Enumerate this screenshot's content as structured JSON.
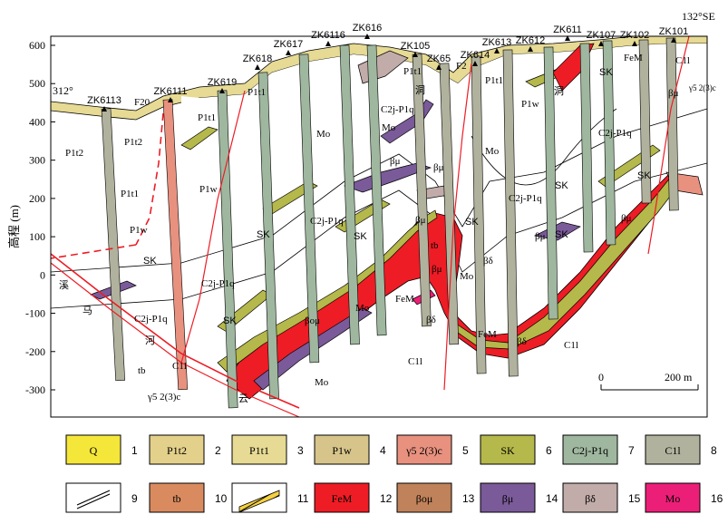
{
  "orientation": {
    "left": "312°",
    "right": "132°SE"
  },
  "axis": {
    "ylabel": "高程 (m)",
    "ticks": [
      {
        "label": "600",
        "v": 600
      },
      {
        "label": "500",
        "v": 500
      },
      {
        "label": "400",
        "v": 400
      },
      {
        "label": "300",
        "v": 300
      },
      {
        "label": "200",
        "v": 200
      },
      {
        "label": "100",
        "v": 100
      },
      {
        "label": "0",
        "v": 0
      },
      {
        "label": "-100",
        "v": -100
      },
      {
        "label": "-200",
        "v": -200
      },
      {
        "label": "-300",
        "v": -300
      }
    ]
  },
  "scale": {
    "start": "0",
    "end": "200 m"
  },
  "boreholes": [
    "ZK6113",
    "ZK6111",
    "ZK619",
    "ZK618",
    "ZK617",
    "ZK6116",
    "ZK616",
    "ZK105",
    "ZK65",
    "ZK614",
    "ZK613",
    "ZK612",
    "ZK611",
    "ZK107",
    "ZK102",
    "ZK101"
  ],
  "faults": {
    "f20": "F20",
    "f2": "F2"
  },
  "section_labels": {
    "p1t2_a": "P1t2",
    "p1t2_b": "P1t2",
    "p1t1_a": "P1t1",
    "p1t1_b": "P1t1",
    "p1t1_c": "P1t1",
    "p1t1_d": "P1t1",
    "p1t1_e": "P1t1",
    "p1w_a": "P1w",
    "p1w_b": "P1w",
    "p1w_c": "P1w",
    "cjp_a": "C2j-P1q",
    "cjp_b": "C2j-P1q",
    "cjp_c": "C2j-P1q",
    "cjp_d": "C2j-P1q",
    "cjp_e": "C2j-P1q",
    "cjp_f": "C2j-P1q",
    "c1l_a": "C1l",
    "c1l_b": "C1l",
    "c1l_c": "C1l",
    "c1l_d": "C1l",
    "sk_a": "SK",
    "sk_b": "SK",
    "sk_c": "SK",
    "sk_d": "SK",
    "sk_e": "SK",
    "sk_f": "SK",
    "sk_g": "SK",
    "sk_h": "SK",
    "sk_i": "SK",
    "mo_a": "Mo",
    "mo_b": "Mo",
    "mo_c": "Mo",
    "mo_d": "Mo",
    "mo_e": "Mo",
    "mo_f": "Mo",
    "bmu_a": "βμ",
    "bmu_b": "βμ",
    "bmu_c": "βμ",
    "bmu_d": "βμ",
    "bmu_e": "βμ",
    "bmu_f": "βμ",
    "bmu_g": "βμ",
    "bd_a": "βδ",
    "bd_b": "βδ",
    "bd_c": "βδ",
    "bom": "βομ",
    "fem_a": "FeM",
    "fem_b": "FeM",
    "fem_c": "FeM",
    "tb_a": "tb",
    "tb_b": "tb",
    "gs_a": "γ5 2(3)c",
    "gs_b": "γ5 2(3)c",
    "chan_a": "洞",
    "chan_b": "洞",
    "xi": "溪",
    "ma": "马",
    "he": "河",
    "yun": "云"
  },
  "legend": [
    {
      "num": "1",
      "label": "Q",
      "color": "#f5e63a"
    },
    {
      "num": "2",
      "label": "P1t2",
      "color": "#e3d08a"
    },
    {
      "num": "3",
      "label": "P1t1",
      "color": "#e6da94"
    },
    {
      "num": "4",
      "label": "P1w",
      "color": "#d6c48a"
    },
    {
      "num": "5",
      "label": "γ5 2(3)c",
      "color": "#e8917f"
    },
    {
      "num": "6",
      "label": "SK",
      "color": "#b5b84a"
    },
    {
      "num": "7",
      "label": "C2j-P1q",
      "color": "#9fb79f"
    },
    {
      "num": "8",
      "label": "C1l",
      "color": "#b1b29d"
    },
    {
      "num": "9",
      "label": "",
      "color": "#ffffff"
    },
    {
      "num": "10",
      "label": "tb",
      "color": "#d98b5f"
    },
    {
      "num": "11",
      "label": "",
      "color": "#ffffff"
    },
    {
      "num": "12",
      "label": "FeM",
      "color": "#ee1c25"
    },
    {
      "num": "13",
      "label": "βομ",
      "color": "#c0825a"
    },
    {
      "num": "14",
      "label": "βμ",
      "color": "#7a5a99"
    },
    {
      "num": "15",
      "label": "βδ",
      "color": "#c1aca9"
    },
    {
      "num": "16",
      "label": "Mo",
      "color": "#ec1f78"
    }
  ]
}
